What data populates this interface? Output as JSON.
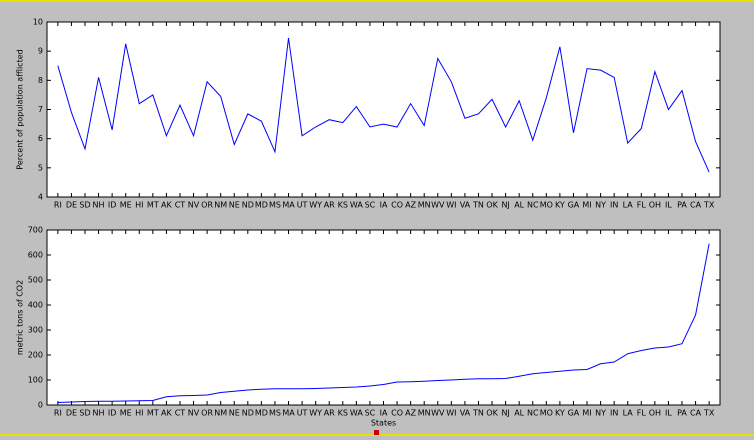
{
  "chart_data": [
    {
      "type": "line",
      "ylabel": "Percent of population afflicted",
      "categories": [
        "RI",
        "DE",
        "SD",
        "NH",
        "ID",
        "ME",
        "HI",
        "MT",
        "AK",
        "CT",
        "NV",
        "OR",
        "NM",
        "NE",
        "ND",
        "MD",
        "MS",
        "MA",
        "UT",
        "WY",
        "AR",
        "KS",
        "WA",
        "SC",
        "IA",
        "CO",
        "AZ",
        "MN",
        "WV",
        "WI",
        "VA",
        "TN",
        "OK",
        "NJ",
        "AL",
        "NC",
        "MO",
        "KY",
        "GA",
        "MI",
        "NY",
        "IN",
        "LA",
        "FL",
        "OH",
        "IL",
        "PA",
        "CA",
        "TX"
      ],
      "series": [
        {
          "color": "#0000ff",
          "values": [
            8.5,
            6.9,
            5.65,
            8.1,
            6.3,
            9.25,
            7.2,
            7.5,
            6.1,
            7.15,
            6.1,
            7.95,
            7.45,
            5.8,
            6.85,
            6.6,
            5.55,
            9.45,
            6.1,
            6.4,
            6.65,
            6.55,
            7.1,
            6.4,
            6.5,
            6.4,
            7.2,
            6.45,
            8.75,
            7.95,
            6.7,
            6.85,
            7.35,
            6.4,
            7.3,
            5.95,
            7.4,
            9.15,
            6.2,
            8.4,
            8.35,
            8.1,
            5.85,
            6.35,
            8.3,
            7.0,
            7.65,
            5.9,
            4.85
          ]
        }
      ],
      "ylim": [
        4,
        10
      ],
      "yticks": [
        4,
        5,
        6,
        7,
        8,
        9,
        10
      ]
    },
    {
      "type": "line",
      "ylabel": "metric tons of CO2",
      "xlabel": "States",
      "categories": [
        "RI",
        "DE",
        "SD",
        "NH",
        "ID",
        "ME",
        "HI",
        "MT",
        "AK",
        "CT",
        "NV",
        "OR",
        "NM",
        "NE",
        "ND",
        "MD",
        "MS",
        "MA",
        "UT",
        "WY",
        "AR",
        "KS",
        "WA",
        "SC",
        "IA",
        "CO",
        "AZ",
        "MN",
        "WV",
        "WI",
        "VA",
        "TN",
        "OK",
        "NJ",
        "AL",
        "NC",
        "MO",
        "KY",
        "GA",
        "MI",
        "NY",
        "IN",
        "LA",
        "FL",
        "OH",
        "IL",
        "PA",
        "CA",
        "TX"
      ],
      "series": [
        {
          "color": "#0000ff",
          "values": [
            10,
            12,
            14,
            15,
            15,
            16,
            17,
            18,
            33,
            37,
            38,
            40,
            50,
            55,
            60,
            63,
            65,
            65,
            65,
            66,
            68,
            70,
            72,
            76,
            82,
            92,
            93,
            95,
            98,
            100,
            103,
            105,
            105,
            106,
            115,
            125,
            130,
            135,
            140,
            142,
            165,
            172,
            205,
            218,
            228,
            232,
            245,
            360,
            645
          ]
        }
      ],
      "ylim": [
        0,
        700
      ],
      "yticks": [
        0,
        100,
        200,
        300,
        400,
        500,
        600,
        700
      ]
    }
  ]
}
